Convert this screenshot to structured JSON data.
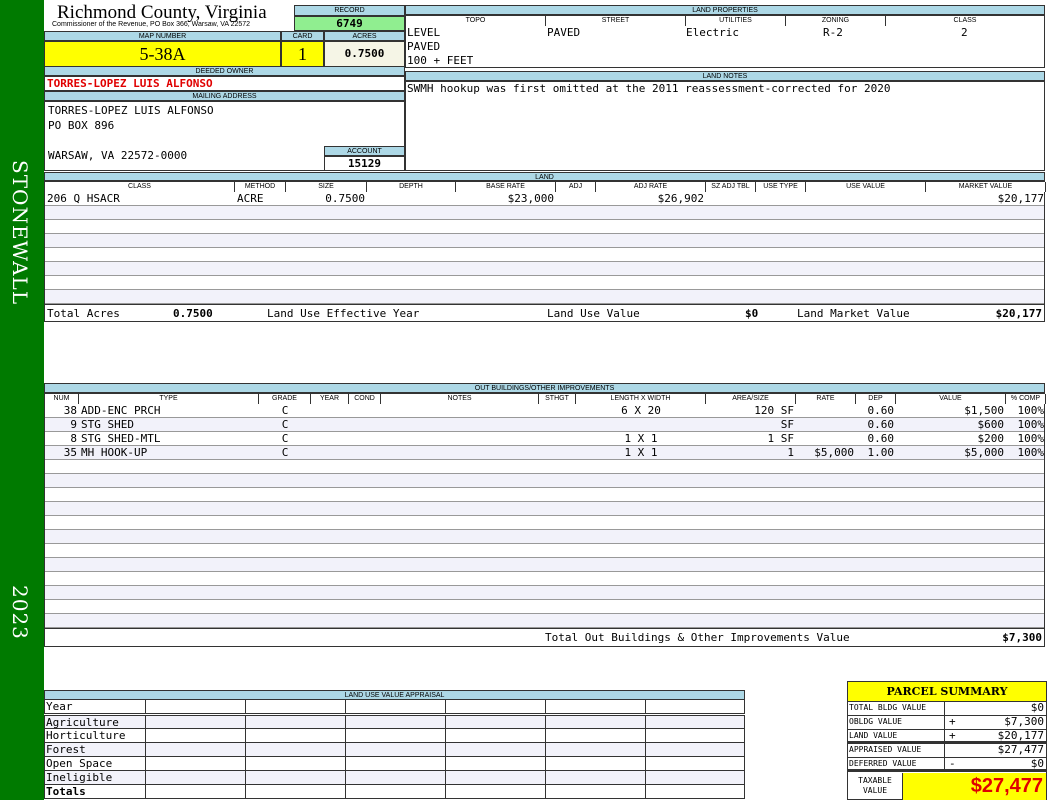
{
  "sidebar": {
    "district": "STONEWALL",
    "year": "2023",
    "color": "#007a00"
  },
  "header": {
    "county": "Richmond County, Virginia",
    "subtitle": "Commissioner of the Revenue, PO Box 366, Warsaw, VA 22572",
    "record_label": "RECORD",
    "record": "6749",
    "map_label": "MAP NUMBER",
    "map": "5-38A",
    "card_label": "CARD",
    "card": "1",
    "acres_label": "ACRES",
    "acres": "0.7500"
  },
  "owner": {
    "deeded_label": "DEEDED OWNER",
    "deeded": "TORRES-LOPEZ LUIS ALFONSO",
    "mailing_label": "MAILING ADDRESS",
    "line1": "TORRES-LOPEZ LUIS ALFONSO",
    "line2": "PO BOX 896",
    "line3": "WARSAW, VA 22572-0000",
    "account_label": "ACCOUNT",
    "account": "15129"
  },
  "land_properties": {
    "title": "LAND PROPERTIES",
    "columns": [
      "TOPO",
      "STREET",
      "UTILITIES",
      "ZONING",
      "CLASS"
    ],
    "topo": [
      "LEVEL",
      "PAVED",
      "100 + FEET"
    ],
    "street": "PAVED",
    "utilities": "Electric",
    "zoning": "R-2",
    "class": "2"
  },
  "land_notes": {
    "title": "LAND NOTES",
    "text": "SWMH hookup was first omitted at the 2011 reassessment-corrected for 2020"
  },
  "land": {
    "title": "LAND",
    "columns": [
      "CLASS",
      "METHOD",
      "SIZE",
      "DEPTH",
      "BASE RATE",
      "ADJ",
      "ADJ RATE",
      "SZ ADJ TBL",
      "USE TYPE",
      "USE VALUE",
      "MARKET VALUE"
    ],
    "rows": [
      [
        "206 Q HSACR",
        "ACRE",
        "0.7500",
        "",
        "$23,000",
        "",
        "$26,902",
        "",
        "",
        "",
        "$20,177"
      ]
    ],
    "totals": {
      "acres_label": "Total Acres",
      "acres": "0.7500",
      "effyear_label": "Land Use Effective Year",
      "effyear": "",
      "use_label": "Land Use Value",
      "use": "$0",
      "market_label": "Land Market Value",
      "market": "$20,177"
    }
  },
  "outbuildings": {
    "title": "OUT BUILDINGS/OTHER IMPROVEMENTS",
    "columns": [
      "NUM",
      "TYPE",
      "GRADE",
      "YEAR",
      "COND",
      "NOTES",
      "STHGT",
      "LENGTH X WIDTH",
      "AREA/SIZE",
      "RATE",
      "DEP",
      "VALUE",
      "% COMP"
    ],
    "rows": [
      [
        "38",
        "ADD-ENC PRCH",
        "C",
        "",
        "",
        "",
        "",
        "6 X 20",
        "120 SF",
        "",
        "0.60",
        "$1,500",
        "100%"
      ],
      [
        "9",
        "STG SHED",
        "C",
        "",
        "",
        "",
        "",
        "",
        "SF",
        "",
        "0.60",
        "$600",
        "100%"
      ],
      [
        "8",
        "STG SHED-MTL",
        "C",
        "",
        "",
        "",
        "",
        "1 X 1",
        "1 SF",
        "",
        "0.60",
        "$200",
        "100%"
      ],
      [
        "35",
        "MH HOOK-UP",
        "C",
        "",
        "",
        "",
        "",
        "1 X 1",
        "1",
        "$5,000",
        "1.00",
        "$5,000",
        "100%"
      ]
    ],
    "total_label": "Total Out Buildings & Other Improvements Value",
    "total": "$7,300"
  },
  "land_use": {
    "title": "LAND USE VALUE APPRAISAL",
    "rows": [
      "Year",
      "Agriculture",
      "Horticulture",
      "Forest",
      "Open Space",
      "Ineligible",
      "Totals"
    ]
  },
  "summary": {
    "title": "PARCEL SUMMARY",
    "rows": [
      {
        "label": "TOTAL BLDG VALUE",
        "sign": "",
        "value": "$0"
      },
      {
        "label": "OBLDG VALUE",
        "sign": "+",
        "value": "$7,300"
      },
      {
        "label": "LAND VALUE",
        "sign": "+",
        "value": "$20,177"
      },
      {
        "label": "APPRAISED VALUE",
        "sign": "",
        "value": "$27,477"
      },
      {
        "label": "DEFERRED VALUE",
        "sign": "-",
        "value": "$0"
      }
    ],
    "taxable_label": "TAXABLE VALUE",
    "taxable": "$27,477"
  }
}
